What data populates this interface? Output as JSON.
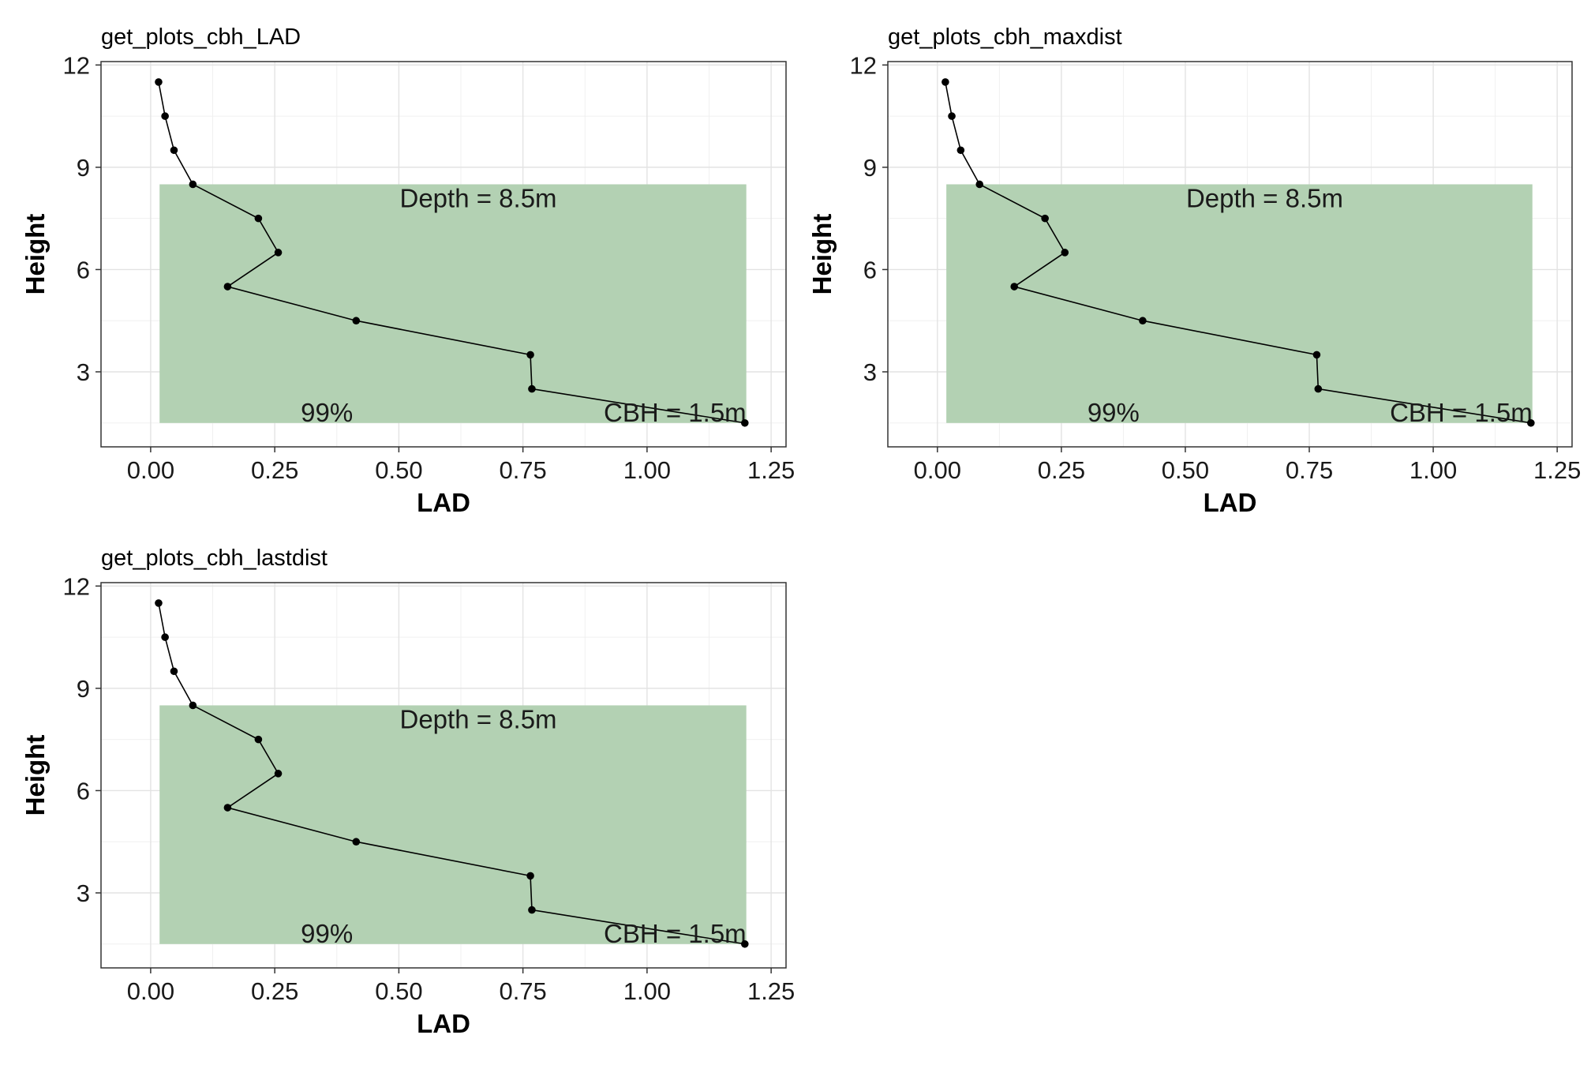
{
  "chart_data": [
    {
      "type": "line",
      "title": "get_plots_cbh_LAD",
      "xlabel": "LAD",
      "ylabel": "Height",
      "xlim": [
        -0.1,
        1.28
      ],
      "ylim": [
        0.8,
        12.1
      ],
      "xticks": [
        "0.00",
        "0.25",
        "0.50",
        "0.75",
        "1.00",
        "1.25"
      ],
      "yticks": [
        "3",
        "6",
        "9",
        "12"
      ],
      "grid": true,
      "series": [
        {
          "x": [
            0.016,
            0.029,
            0.047,
            0.085,
            0.217,
            0.257,
            0.155,
            0.414,
            0.765,
            0.768,
            1.197
          ],
          "y": [
            11.5,
            10.5,
            9.5,
            8.5,
            7.5,
            6.5,
            5.5,
            4.5,
            3.5,
            2.5,
            1.5
          ]
        }
      ],
      "band": {
        "x_start": 0.018,
        "x_end": 1.2,
        "y_start": 1.5,
        "y_end": 8.5,
        "color": "#b3d1b3"
      },
      "annotations": [
        "Depth = 8.5m",
        "99%",
        "CBH = 1.5m"
      ]
    },
    {
      "type": "line",
      "title": "get_plots_cbh_maxdist",
      "xlabel": "LAD",
      "ylabel": "Height",
      "xlim": [
        -0.1,
        1.28
      ],
      "ylim": [
        0.8,
        12.1
      ],
      "xticks": [
        "0.00",
        "0.25",
        "0.50",
        "0.75",
        "1.00",
        "1.25"
      ],
      "yticks": [
        "3",
        "6",
        "9",
        "12"
      ],
      "grid": true,
      "series": [
        {
          "x": [
            0.016,
            0.029,
            0.047,
            0.085,
            0.217,
            0.257,
            0.155,
            0.414,
            0.765,
            0.768,
            1.197
          ],
          "y": [
            11.5,
            10.5,
            9.5,
            8.5,
            7.5,
            6.5,
            5.5,
            4.5,
            3.5,
            2.5,
            1.5
          ]
        }
      ],
      "band": {
        "x_start": 0.018,
        "x_end": 1.2,
        "y_start": 1.5,
        "y_end": 8.5,
        "color": "#b3d1b3"
      },
      "annotations": [
        "Depth = 8.5m",
        "99%",
        "CBH = 1.5m"
      ]
    },
    {
      "type": "line",
      "title": "get_plots_cbh_lastdist",
      "xlabel": "LAD",
      "ylabel": "Height",
      "xlim": [
        -0.1,
        1.28
      ],
      "ylim": [
        0.8,
        12.1
      ],
      "xticks": [
        "0.00",
        "0.25",
        "0.50",
        "0.75",
        "1.00",
        "1.25"
      ],
      "yticks": [
        "3",
        "6",
        "9",
        "12"
      ],
      "grid": true,
      "series": [
        {
          "x": [
            0.016,
            0.029,
            0.047,
            0.085,
            0.217,
            0.257,
            0.155,
            0.414,
            0.765,
            0.768,
            1.197
          ],
          "y": [
            11.5,
            10.5,
            9.5,
            8.5,
            7.5,
            6.5,
            5.5,
            4.5,
            3.5,
            2.5,
            1.5
          ]
        }
      ],
      "band": {
        "x_start": 0.018,
        "x_end": 1.2,
        "y_start": 1.5,
        "y_end": 8.5,
        "color": "#b3d1b3"
      },
      "annotations": [
        "Depth = 8.5m",
        "99%",
        "CBH = 1.5m"
      ]
    }
  ]
}
